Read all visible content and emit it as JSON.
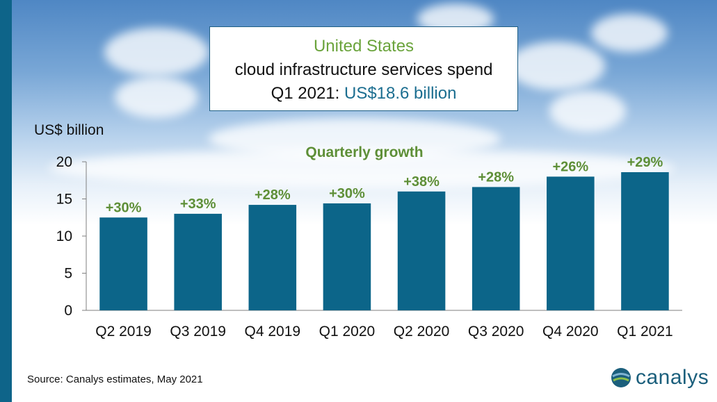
{
  "title": {
    "line1": "United States",
    "line2": "cloud infrastructure services spend",
    "line3_prefix": "Q1 2021: ",
    "line3_value": "US$18.6 billion"
  },
  "source": "Source: Canalys estimates, May 2021",
  "logo": {
    "text": "canalys"
  },
  "colors": {
    "bar": "#0c6589",
    "growth": "#5e8f37",
    "accent_green": "#6aa33b",
    "accent_blue": "#1c6e90",
    "left_bar": "#0e6489"
  },
  "chart_data": {
    "type": "bar",
    "ylabel": "US$ billion",
    "annotation_title": "Quarterly growth",
    "categories": [
      "Q2 2019",
      "Q3 2019",
      "Q4 2019",
      "Q1 2020",
      "Q2 2020",
      "Q3 2020",
      "Q4 2020",
      "Q1 2021"
    ],
    "values": [
      12.5,
      13.0,
      14.2,
      14.4,
      16.0,
      16.6,
      18.0,
      18.6
    ],
    "growth_labels": [
      "+30%",
      "+33%",
      "+28%",
      "+30%",
      "+38%",
      "+28%",
      "+26%",
      "+29%"
    ],
    "ylim": [
      0,
      20
    ],
    "yticks": [
      0,
      5,
      10,
      15,
      20
    ],
    "grid": false,
    "legend": "none"
  }
}
